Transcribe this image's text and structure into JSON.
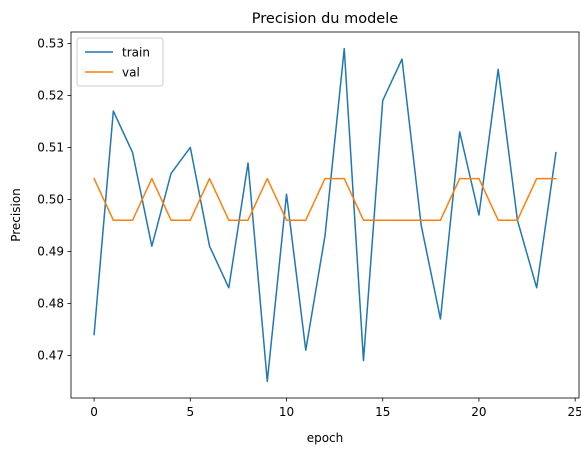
{
  "chart_data": {
    "type": "line",
    "title": "Precision du modele",
    "xlabel": "epoch",
    "ylabel": "Precision",
    "x": [
      0,
      1,
      2,
      3,
      4,
      5,
      6,
      7,
      8,
      9,
      10,
      11,
      12,
      13,
      14,
      15,
      16,
      17,
      18,
      19,
      20,
      21,
      22,
      23,
      24
    ],
    "xlim": [
      -1.2,
      25.2
    ],
    "ylim": [
      0.4618,
      0.5322
    ],
    "xticks": [
      0,
      5,
      10,
      15,
      20,
      25
    ],
    "xtick_labels": [
      "0",
      "5",
      "10",
      "15",
      "20",
      "25"
    ],
    "yticks": [
      0.47,
      0.48,
      0.49,
      0.5,
      0.51,
      0.52,
      0.53
    ],
    "ytick_labels": [
      "0.47",
      "0.48",
      "0.49",
      "0.50",
      "0.51",
      "0.52",
      "0.53"
    ],
    "grid": false,
    "legend": {
      "placement": "top-left"
    },
    "series": [
      {
        "name": "train",
        "color": "#1f77b4",
        "values": [
          0.474,
          0.517,
          0.509,
          0.491,
          0.505,
          0.51,
          0.491,
          0.483,
          0.507,
          0.465,
          0.501,
          0.471,
          0.493,
          0.529,
          0.469,
          0.519,
          0.527,
          0.495,
          0.477,
          0.513,
          0.497,
          0.525,
          0.496,
          0.483,
          0.509
        ]
      },
      {
        "name": "val",
        "color": "#ff7f0e",
        "values": [
          0.504,
          0.496,
          0.496,
          0.504,
          0.496,
          0.496,
          0.504,
          0.496,
          0.496,
          0.504,
          0.496,
          0.496,
          0.504,
          0.504,
          0.496,
          0.496,
          0.496,
          0.496,
          0.496,
          0.504,
          0.504,
          0.496,
          0.496,
          0.504,
          0.504
        ]
      }
    ]
  }
}
